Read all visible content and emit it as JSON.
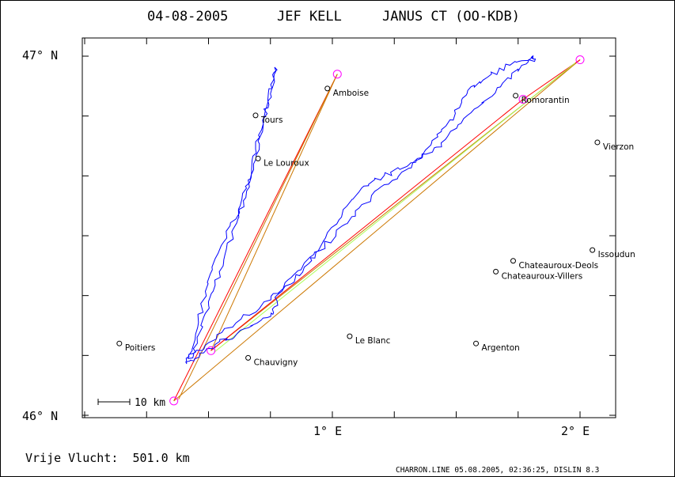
{
  "title": {
    "date": "04-08-2005",
    "pilot": "JEF KELL",
    "glider": "JANUS CT (OO-KDB)"
  },
  "axes": {
    "lat_top": "47° N",
    "lat_bottom": "46° N",
    "lon_1": "1° E",
    "lon_2": "2° E"
  },
  "scale_bar": {
    "label": "10 km"
  },
  "footer": {
    "free_flight": "Vrije Vlucht:  501.0 km",
    "program": "CHARRON.LINE 05.08.2005, 02:36:25, DISLIN 8.3"
  },
  "map_data": {
    "lon_range": [
      0.05,
      2.15
    ],
    "lat_range": [
      45.995,
      47.01
    ],
    "cities": [
      {
        "name": "Amboise",
        "lon": 0.98,
        "lat": 46.91
      },
      {
        "name": "Tours",
        "lon": 0.69,
        "lat": 46.835
      },
      {
        "name": "Le Louroux",
        "lon": 0.7,
        "lat": 46.715
      },
      {
        "name": "Romorantin",
        "lon": 1.74,
        "lat": 46.89
      },
      {
        "name": "Vierzon",
        "lon": 2.07,
        "lat": 46.76
      },
      {
        "name": "Issoudun",
        "lon": 2.05,
        "lat": 46.46
      },
      {
        "name": "Chateauroux-Deols",
        "lon": 1.73,
        "lat": 46.43
      },
      {
        "name": "Chateauroux-Villers",
        "lon": 1.66,
        "lat": 46.4
      },
      {
        "name": "Le Blanc",
        "lon": 1.07,
        "lat": 46.22
      },
      {
        "name": "Argenton",
        "lon": 1.58,
        "lat": 46.2
      },
      {
        "name": "Poitiers",
        "lon": 0.14,
        "lat": 46.2
      },
      {
        "name": "Chauvigny",
        "lon": 0.66,
        "lat": 46.16
      }
    ],
    "turnpoints": [
      {
        "lon": 0.36,
        "lat": 46.04
      },
      {
        "lon": 1.02,
        "lat": 46.95
      },
      {
        "lon": 0.51,
        "lat": 46.18
      },
      {
        "lon": 1.77,
        "lat": 46.88
      },
      {
        "lon": 2.0,
        "lat": 46.99
      }
    ],
    "colors": {
      "track": "#0000ff",
      "triangle": "#ff0000",
      "leg": "#cc7700",
      "aux": "#aaff55",
      "turnpoint": "#ff00ff"
    }
  }
}
